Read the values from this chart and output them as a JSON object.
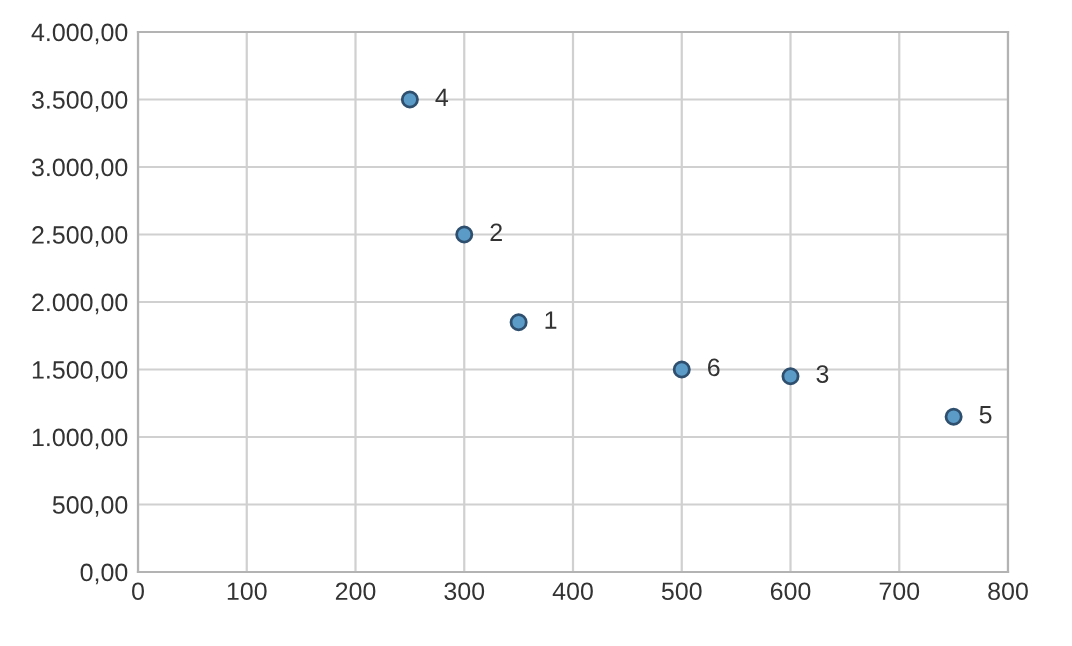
{
  "chart_data": {
    "type": "scatter",
    "x": [
      350,
      300,
      600,
      250,
      750,
      500
    ],
    "series": [
      {
        "color": "#5a9bc7",
        "values": [
          1850,
          2500,
          1450,
          3500,
          1150,
          1500
        ]
      }
    ],
    "annotations": [
      {
        "text": "1",
        "x": 350,
        "y": 1850
      },
      {
        "text": "2",
        "x": 300,
        "y": 2500
      },
      {
        "text": "3",
        "x": 600,
        "y": 1450
      },
      {
        "text": "4",
        "x": 250,
        "y": 3500
      },
      {
        "text": "5",
        "x": 750,
        "y": 1150
      },
      {
        "text": "6",
        "x": 500,
        "y": 1500
      }
    ],
    "xlim": [
      0,
      800
    ],
    "xticks": [
      0,
      100,
      200,
      300,
      400,
      500,
      600,
      700,
      800
    ],
    "ylim": [
      0,
      4000
    ],
    "yticks": [
      {
        "value": 0,
        "label": "0,00"
      },
      {
        "value": 500,
        "label": "500,00"
      },
      {
        "value": 1000,
        "label": "1.000,00"
      },
      {
        "value": 1500,
        "label": "1.500,00"
      },
      {
        "value": 2000,
        "label": "2.000,00"
      },
      {
        "value": 2500,
        "label": "2.500,00"
      },
      {
        "value": 3000,
        "label": "3.000,00"
      },
      {
        "value": 3500,
        "label": "3.500,00"
      },
      {
        "value": 4000,
        "label": "4.000,00"
      }
    ],
    "grid": true,
    "marker": "circle",
    "legend": false
  }
}
